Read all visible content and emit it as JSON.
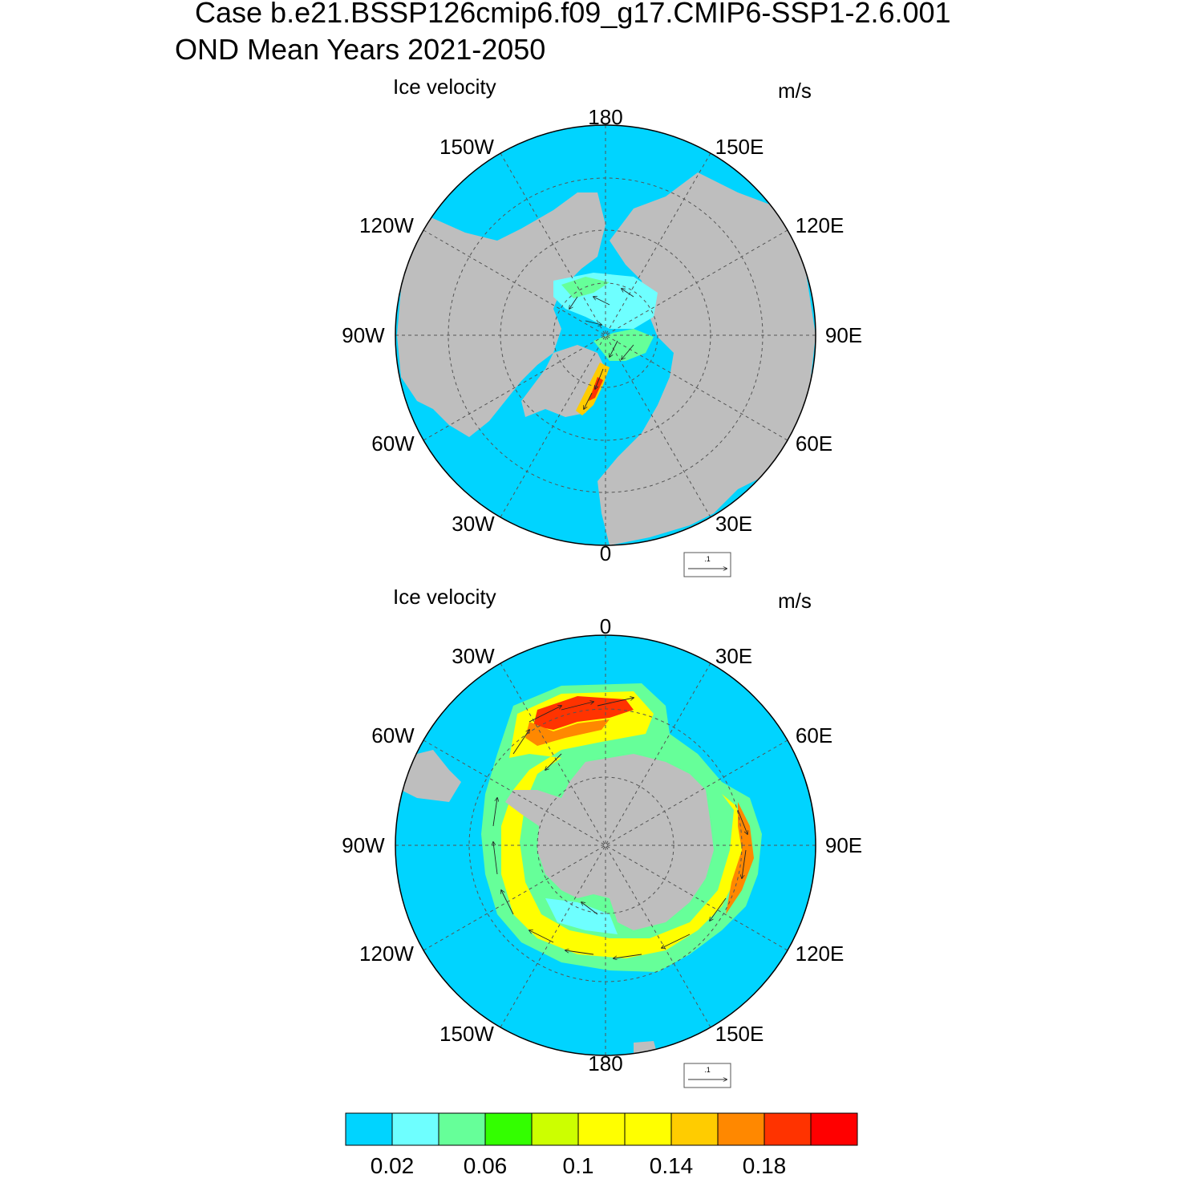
{
  "figure": {
    "title_line1": "Case b.e21.BSSP126cmip6.f09_g17.CMIP6-SSP1-2.6.001",
    "title_line2": "OND Mean   Years 2021-2050"
  },
  "colors": {
    "ocean": "#00d4ff",
    "land": "#bebebe",
    "grid": "#555555",
    "levels": [
      "#00d4ff",
      "#6effff",
      "#66ff99",
      "#33ff00",
      "#ccff00",
      "#ffff00",
      "#ffff00",
      "#ffcc00",
      "#ff8800",
      "#ff3300",
      "#ff0000"
    ]
  },
  "panels": [
    {
      "id": "north",
      "hemisphere": "Northern Hemisphere",
      "label": "Ice velocity",
      "units": "m/s",
      "lon_labels": [
        "180",
        "150E",
        "120E",
        "90E",
        "60E",
        "30E",
        "0",
        "30W",
        "60W",
        "90W",
        "120W",
        "150W"
      ],
      "ref_vector_label": ".1"
    },
    {
      "id": "south",
      "hemisphere": "Southern Hemisphere",
      "label": "Ice velocity",
      "units": "m/s",
      "lon_labels": [
        "0",
        "30E",
        "60E",
        "90E",
        "120E",
        "150E",
        "180",
        "150W",
        "120W",
        "90W",
        "60W",
        "30W"
      ],
      "ref_vector_label": ".1"
    }
  ],
  "colorbar": {
    "tick_labels": [
      "0.02",
      "0.06",
      "0.1",
      "0.14",
      "0.18"
    ],
    "levels": [
      0.02,
      0.04,
      0.06,
      0.08,
      0.1,
      0.12,
      0.14,
      0.16,
      0.18,
      0.2
    ],
    "units": "m/s"
  }
}
